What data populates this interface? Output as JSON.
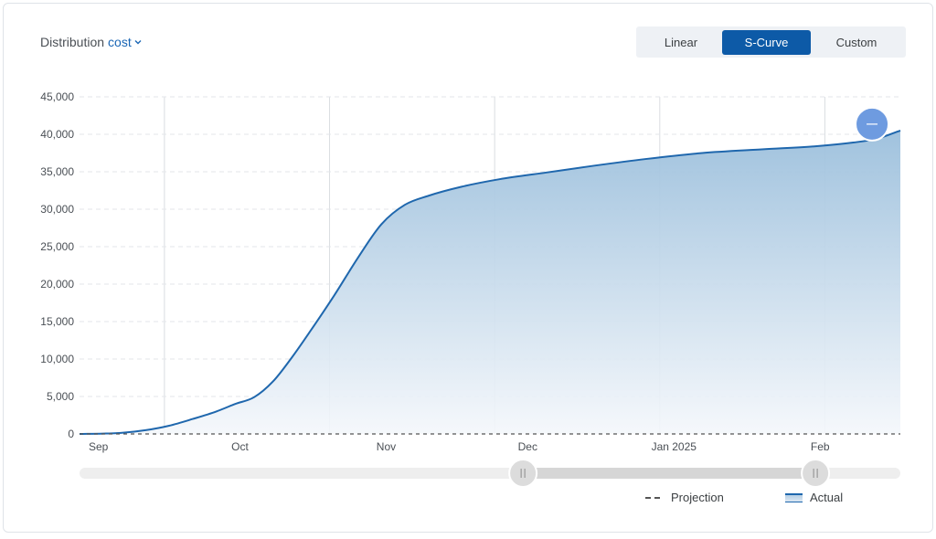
{
  "header": {
    "distribution_label": "Distribution",
    "metric": "cost",
    "metric_icon": "chevron-down-icon"
  },
  "mode_toggle": {
    "options": [
      "Linear",
      "S-Curve",
      "Custom"
    ],
    "active": "S-Curve"
  },
  "colors": {
    "accent": "#0d5aa7",
    "line": "#1f67ad",
    "area_top": "#9bbfdc",
    "area_bottom": "#f4f7fb",
    "handle": "#6e9be0"
  },
  "chart_data": {
    "type": "area",
    "ylim": [
      0,
      45000
    ],
    "yticks": [
      "0",
      "5,000",
      "10,000",
      "15,000",
      "20,000",
      "25,000",
      "30,000",
      "35,000",
      "40,000",
      "45,000"
    ],
    "xticks": [
      "Sep",
      "Oct",
      "Nov",
      "Dec",
      "Jan 2025",
      "Feb"
    ],
    "xtick_dates": [
      "2024-09-01",
      "2024-10-01",
      "2024-11-01",
      "2024-12-01",
      "2025-01-01",
      "2025-02-01"
    ],
    "xlim": [
      "2024-08-28",
      "2025-02-18"
    ],
    "grid": "horizontal dashed, vertical weekly lines",
    "series": [
      {
        "name": "Actual",
        "x": [
          "2024-08-28",
          "2024-09-02",
          "2024-09-06",
          "2024-09-11",
          "2024-09-16",
          "2024-09-21",
          "2024-09-26",
          "2024-09-30",
          "2024-10-04",
          "2024-10-08",
          "2024-10-12",
          "2024-10-16",
          "2024-10-21",
          "2024-10-26",
          "2024-10-31",
          "2024-11-05",
          "2024-11-10",
          "2024-11-17",
          "2024-11-25",
          "2024-12-05",
          "2024-12-15",
          "2024-12-26",
          "2025-01-07",
          "2025-01-20",
          "2025-01-31",
          "2025-02-08",
          "2025-02-13",
          "2025-02-18"
        ],
        "values": [
          0,
          50,
          150,
          500,
          1100,
          2000,
          3000,
          4000,
          4900,
          7000,
          10200,
          13800,
          18500,
          23500,
          28000,
          30600,
          31800,
          33000,
          34000,
          34900,
          35800,
          36700,
          37500,
          38000,
          38400,
          38900,
          39400,
          40500
        ]
      },
      {
        "name": "Projection",
        "x": [
          "2024-08-28",
          "2025-02-18"
        ],
        "values": [
          0,
          0
        ]
      }
    ],
    "range_slider": {
      "start": "2024-11-30",
      "end": "2025-01-31"
    },
    "legend": [
      "Projection",
      "Actual"
    ]
  }
}
